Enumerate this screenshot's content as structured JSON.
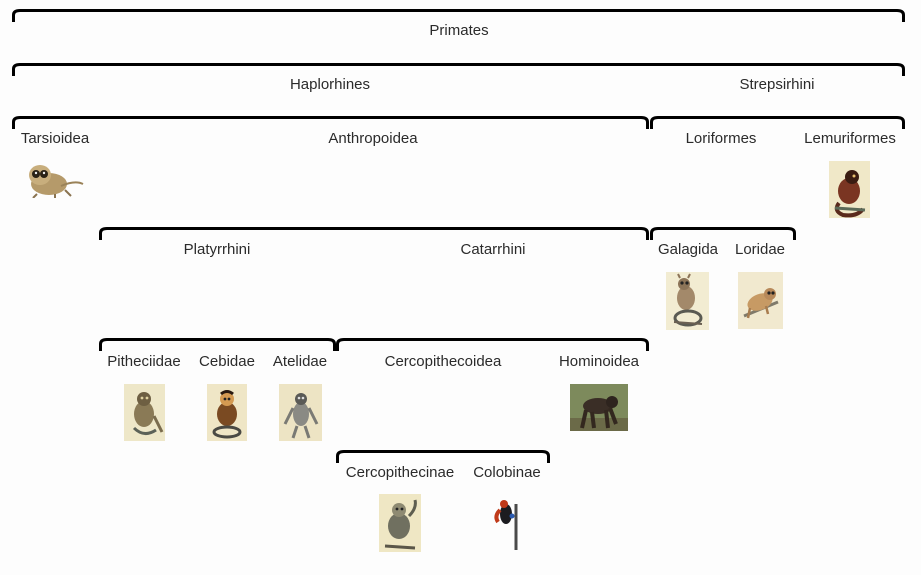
{
  "title": "Primates",
  "nodes": {
    "primates": "Primates",
    "haplorhines": "Haplorhines",
    "strepsirhini": "Strepsirhini",
    "tarsioidea": "Tarsioidea",
    "anthropoidea": "Anthropoidea",
    "loriformes": "Loriformes",
    "lemuriformes": "Lemuriformes",
    "platyrrhini": "Platyrrhini",
    "catarrhini": "Catarrhini",
    "galagida": "Galagida",
    "loridae": "Loridae",
    "pitheciidae": "Pitheciidae",
    "cebidae": "Cebidae",
    "atelidae": "Atelidae",
    "cercopithecoidea": "Cercopithecoidea",
    "hominoidea": "Hominoidea",
    "cercopithecinae": "Cercopithecinae",
    "colobinae": "Colobinae"
  },
  "colors": {
    "bracket": "#000000",
    "text": "#2b2b2b",
    "background": "#fdfdfd"
  },
  "icons": {
    "tarsier": "tarsier-illustration-icon",
    "lemur": "lemur-illustration-icon",
    "galago": "galago-illustration-icon",
    "loris": "loris-illustration-icon",
    "saki": "saki-illustration-icon",
    "capuchin": "capuchin-illustration-icon",
    "spider_monkey": "spider-monkey-illustration-icon",
    "ape": "ape-photo-icon",
    "macaque": "macaque-illustration-icon",
    "colobus": "colobus-illustration-icon"
  }
}
